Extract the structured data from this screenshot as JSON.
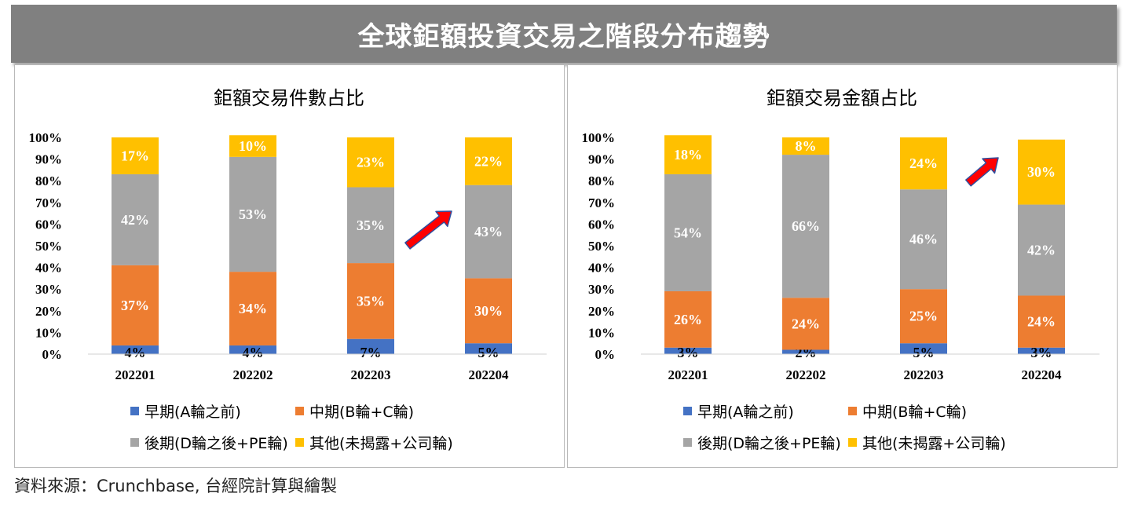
{
  "header": {
    "title": "全球鉅額投資交易之階段分布趨勢"
  },
  "source_note": "資料來源：Crunchbase, 台經院計算與繪製",
  "colors": {
    "early": "#4472C4",
    "mid": "#ED7D31",
    "late": "#A5A5A5",
    "other": "#FFC000",
    "arrow": "#FF0000",
    "banner": "#808080"
  },
  "chart_data": [
    {
      "type": "bar",
      "stacked": true,
      "title": "鉅額交易件數占比",
      "categories": [
        "202201",
        "202202",
        "202203",
        "202204"
      ],
      "yticks": [
        "0%",
        "10%",
        "20%",
        "30%",
        "40%",
        "50%",
        "60%",
        "70%",
        "80%",
        "90%",
        "100%"
      ],
      "ylim": [
        0,
        100
      ],
      "series": [
        {
          "name": "早期(A輪之前)",
          "values": [
            4,
            4,
            7,
            5
          ],
          "labels": [
            "4%",
            "4%",
            "7%",
            "5%"
          ]
        },
        {
          "name": "中期(B輪+C輪)",
          "values": [
            37,
            34,
            35,
            30
          ],
          "labels": [
            "37%",
            "34%",
            "35%",
            "30%"
          ]
        },
        {
          "name": "後期(D輪之後+PE輪)",
          "values": [
            42,
            53,
            35,
            43
          ],
          "labels": [
            "42%",
            "53%",
            "35%",
            "43%"
          ]
        },
        {
          "name": "其他(未揭露+公司輪)",
          "values": [
            17,
            10,
            23,
            22
          ],
          "labels": [
            "17%",
            "10%",
            "23%",
            "22%"
          ]
        }
      ],
      "legend": "bottom",
      "grid": false,
      "annotation": "red-arrow"
    },
    {
      "type": "bar",
      "stacked": true,
      "title": "鉅額交易金額占比",
      "categories": [
        "202201",
        "202202",
        "202203",
        "202204"
      ],
      "yticks": [
        "0%",
        "10%",
        "20%",
        "30%",
        "40%",
        "50%",
        "60%",
        "70%",
        "80%",
        "90%",
        "100%"
      ],
      "ylim": [
        0,
        100
      ],
      "series": [
        {
          "name": "早期(A輪之前)",
          "values": [
            3,
            2,
            5,
            3
          ],
          "labels": [
            "3%",
            "2%",
            "5%",
            "3%"
          ]
        },
        {
          "name": "中期(B輪+C輪)",
          "values": [
            26,
            24,
            25,
            24
          ],
          "labels": [
            "26%",
            "24%",
            "25%",
            "24%"
          ]
        },
        {
          "name": "後期(D輪之後+PE輪)",
          "values": [
            54,
            66,
            46,
            42
          ],
          "labels": [
            "54%",
            "66%",
            "46%",
            "42%"
          ]
        },
        {
          "name": "其他(未揭露+公司輪)",
          "values": [
            18,
            8,
            24,
            30
          ],
          "labels": [
            "18%",
            "8%",
            "24%",
            "30%"
          ]
        }
      ],
      "legend": "bottom",
      "grid": false,
      "annotation": "red-arrow"
    }
  ]
}
